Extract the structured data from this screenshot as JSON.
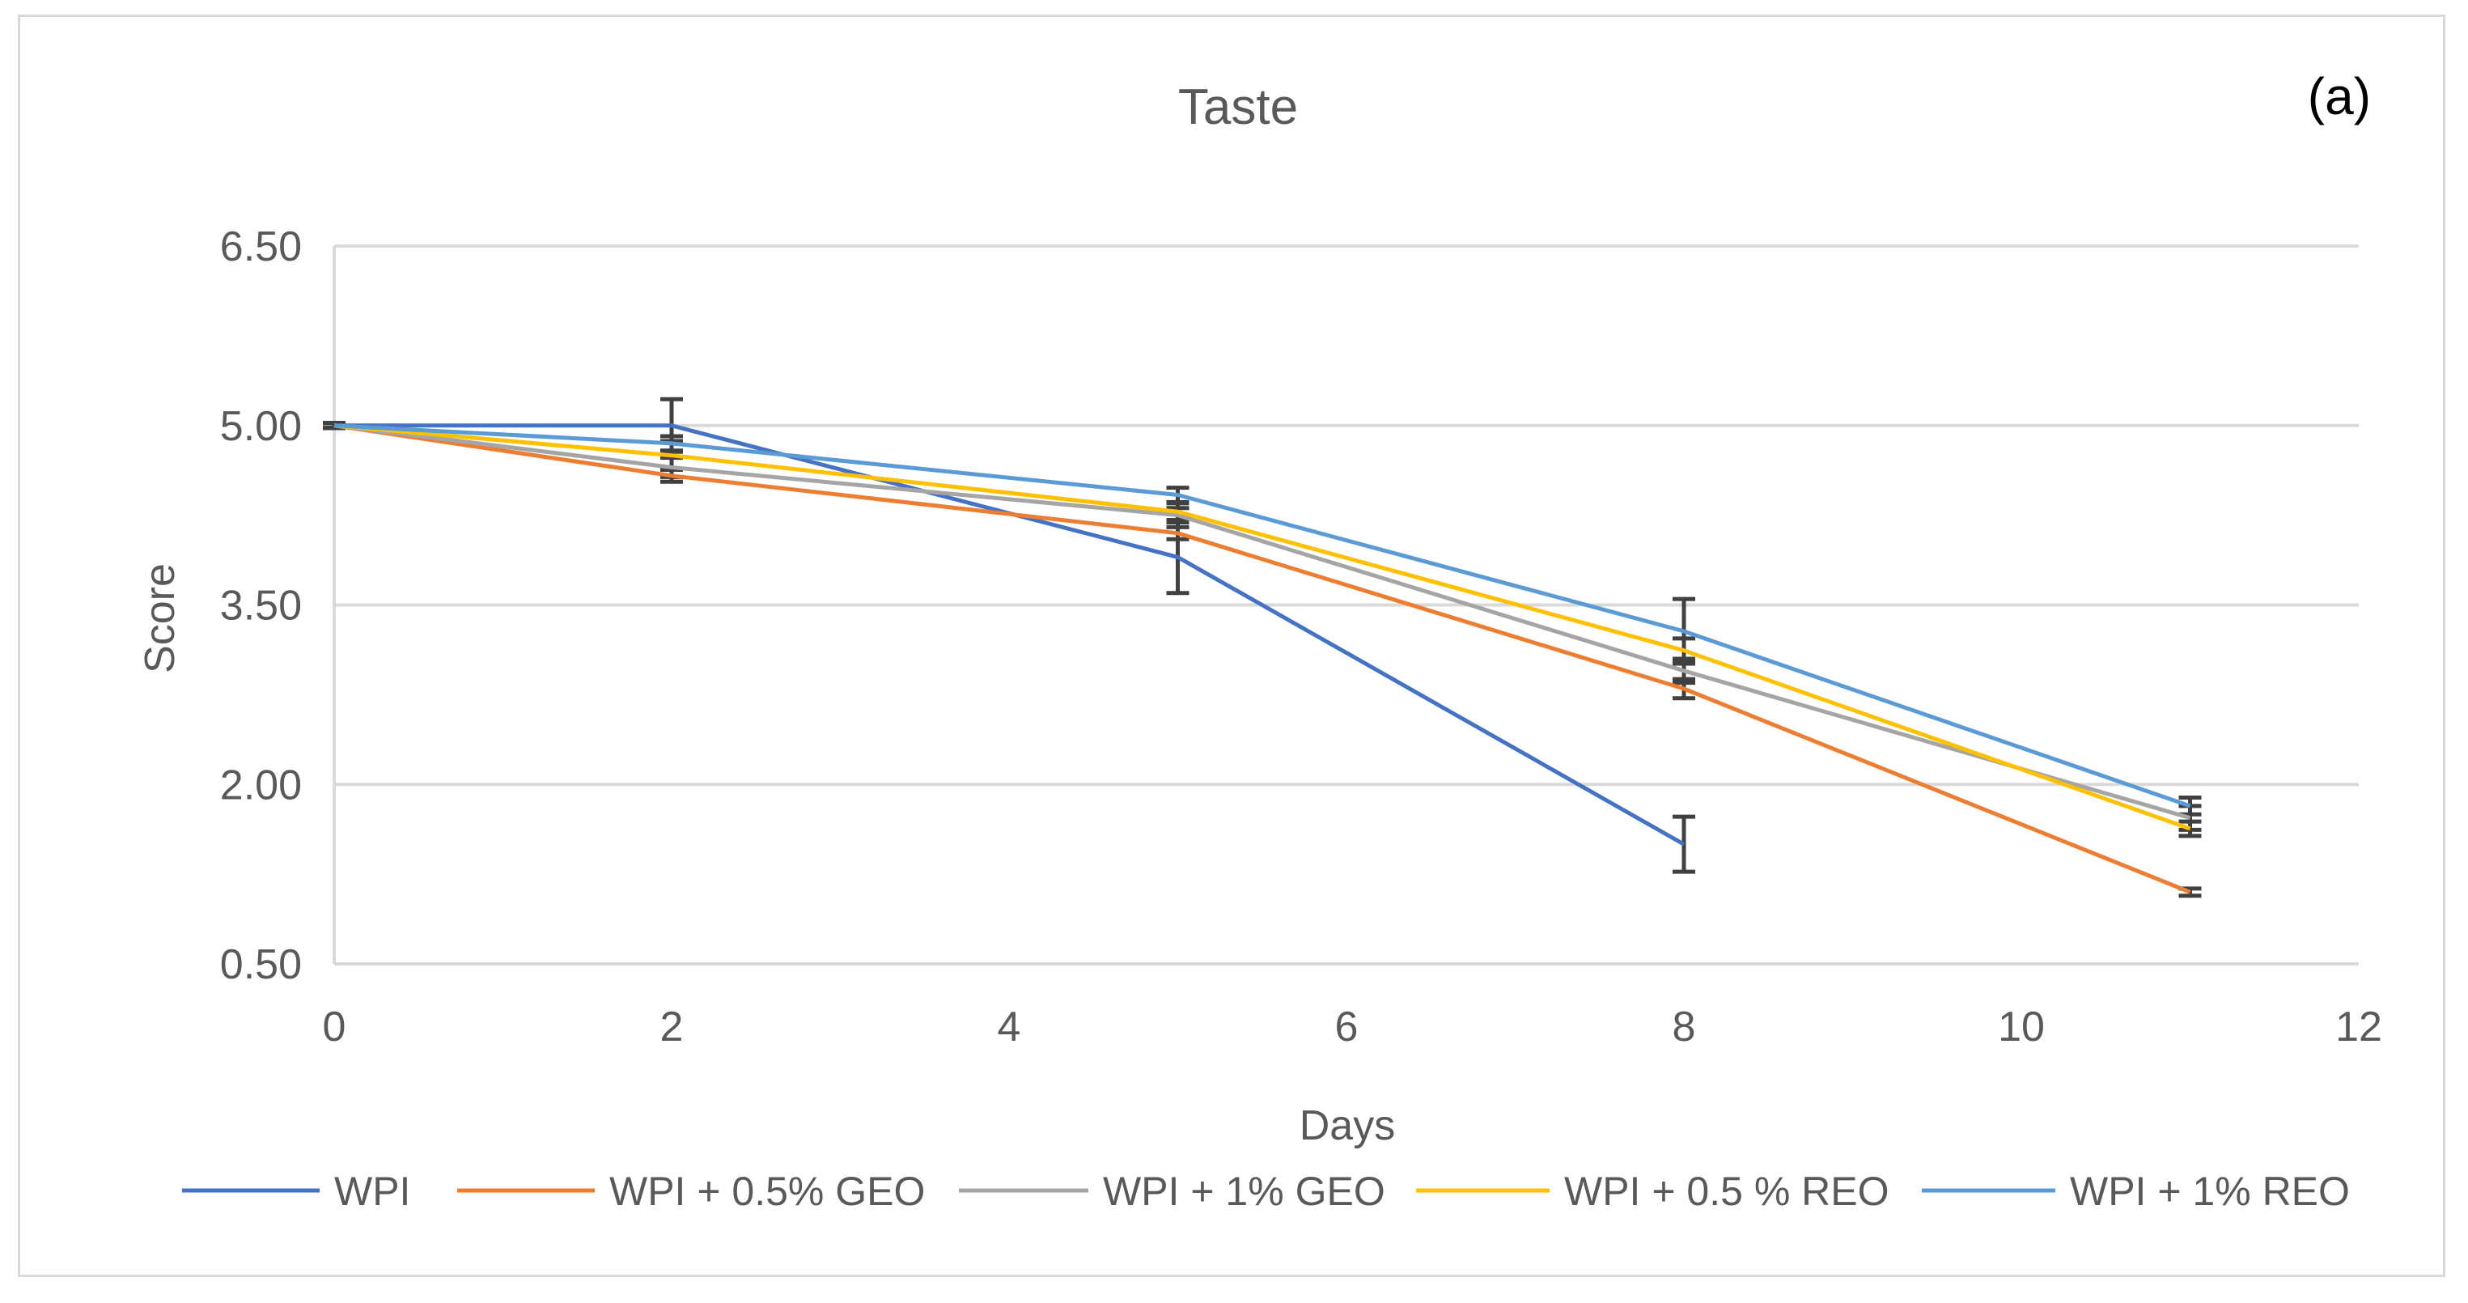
{
  "panel_label": "(a)",
  "chart_data": {
    "type": "line",
    "title": "Taste",
    "xlabel": "Days",
    "ylabel": "Score",
    "xlim": [
      0,
      12
    ],
    "ylim": [
      0.5,
      6.5
    ],
    "x_ticks": [
      0,
      2,
      4,
      6,
      8,
      10,
      12
    ],
    "x_tick_labels": [
      "0",
      "2",
      "4",
      "6",
      "8",
      "10",
      "12"
    ],
    "y_ticks": [
      0.5,
      2.0,
      3.5,
      5.0,
      6.5
    ],
    "y_tick_labels": [
      "0.50",
      "2.00",
      "3.50",
      "5.00",
      "6.50"
    ],
    "grid": "horizontal",
    "legend_position": "bottom",
    "series": [
      {
        "name": "WPI",
        "color": "#4472C4",
        "x": [
          0,
          2,
          5,
          8
        ],
        "y": [
          5.0,
          5.0,
          3.9,
          1.5
        ],
        "err": [
          0.02,
          0.22,
          0.3,
          0.23
        ]
      },
      {
        "name": "WPI + 0.5% GEO",
        "color": "#ED7D31",
        "x": [
          0,
          2,
          5,
          8,
          11
        ],
        "y": [
          5.0,
          4.58,
          4.1,
          2.8,
          1.1
        ],
        "err": [
          0.02,
          0.05,
          0.05,
          0.08,
          0.03
        ]
      },
      {
        "name": "WPI + 1% GEO",
        "color": "#A5A5A5",
        "x": [
          0,
          2,
          5,
          8,
          11
        ],
        "y": [
          5.0,
          4.65,
          4.25,
          2.95,
          1.72
        ],
        "err": [
          0.02,
          0.08,
          0.06,
          0.1,
          0.1
        ]
      },
      {
        "name": "WPI + 0.5 % REO",
        "color": "#FFC000",
        "x": [
          0,
          2,
          5,
          8,
          11
        ],
        "y": [
          5.0,
          4.75,
          4.28,
          3.12,
          1.63
        ],
        "err": [
          0.02,
          0.12,
          0.07,
          0.1,
          0.06
        ]
      },
      {
        "name": "WPI + 1% REO",
        "color": "#5B9BD5",
        "x": [
          0,
          2,
          5,
          8,
          11
        ],
        "y": [
          5.0,
          4.85,
          4.42,
          3.28,
          1.82
        ],
        "err": [
          0.02,
          0.06,
          0.06,
          0.27,
          0.07
        ]
      }
    ]
  }
}
